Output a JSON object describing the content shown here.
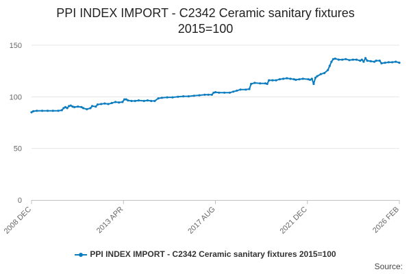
{
  "chart_data": {
    "type": "line",
    "title": "PPI INDEX IMPORT - C2342 Ceramic sanitary fixtures",
    "subtitle": "2015=100",
    "xlabel": "",
    "ylabel": "",
    "ylim": [
      0,
      150
    ],
    "yticks": [
      0,
      50,
      100,
      150
    ],
    "xticks": [
      "2008 DEC",
      "2013 APR",
      "2017 AUG",
      "2021 DEC",
      "2026 FEB"
    ],
    "xrange": [
      "2008-12",
      "2026-02"
    ],
    "grid": true,
    "legend_position": "bottom",
    "color": "#0b7cbf",
    "series": [
      {
        "name": "PPI INDEX IMPORT - C2342 Ceramic sanitary fixtures 2015=100",
        "points": [
          [
            "2008-12",
            85
          ],
          [
            "2009-01",
            86
          ],
          [
            "2009-03",
            86.5
          ],
          [
            "2009-06",
            86.5
          ],
          [
            "2009-09",
            86.5
          ],
          [
            "2009-12",
            86.5
          ],
          [
            "2010-03",
            86.5
          ],
          [
            "2010-05",
            87
          ],
          [
            "2010-06",
            89
          ],
          [
            "2010-07",
            90
          ],
          [
            "2010-08",
            89
          ],
          [
            "2010-09",
            91
          ],
          [
            "2010-10",
            91.5
          ],
          [
            "2010-11",
            90.5
          ],
          [
            "2010-12",
            90
          ],
          [
            "2011-02",
            90.5
          ],
          [
            "2011-04",
            90
          ],
          [
            "2011-05",
            89
          ],
          [
            "2011-07",
            88
          ],
          [
            "2011-09",
            89
          ],
          [
            "2011-10",
            91
          ],
          [
            "2011-12",
            90.5
          ],
          [
            "2012-01",
            92.5
          ],
          [
            "2012-03",
            93
          ],
          [
            "2012-05",
            93.5
          ],
          [
            "2012-07",
            93
          ],
          [
            "2012-09",
            94
          ],
          [
            "2012-11",
            95
          ],
          [
            "2013-01",
            94.5
          ],
          [
            "2013-03",
            95
          ],
          [
            "2013-04",
            97.5
          ],
          [
            "2013-05",
            97.5
          ],
          [
            "2013-06",
            96.5
          ],
          [
            "2013-08",
            96
          ],
          [
            "2013-10",
            96
          ],
          [
            "2013-12",
            96.5
          ],
          [
            "2014-03",
            96
          ],
          [
            "2014-05",
            96.5
          ],
          [
            "2014-07",
            96
          ],
          [
            "2014-09",
            96
          ],
          [
            "2014-11",
            98.5
          ],
          [
            "2015-01",
            99
          ],
          [
            "2015-04",
            99.5
          ],
          [
            "2015-07",
            99.5
          ],
          [
            "2015-10",
            100
          ],
          [
            "2016-01",
            100.5
          ],
          [
            "2016-04",
            100.5
          ],
          [
            "2016-07",
            101
          ],
          [
            "2016-10",
            101.5
          ],
          [
            "2017-01",
            102
          ],
          [
            "2017-03",
            102
          ],
          [
            "2017-05",
            102
          ],
          [
            "2017-06",
            104
          ],
          [
            "2017-07",
            104.5
          ],
          [
            "2017-09",
            104
          ],
          [
            "2017-12",
            104
          ],
          [
            "2018-03",
            104
          ],
          [
            "2018-05",
            105
          ],
          [
            "2018-07",
            106
          ],
          [
            "2018-09",
            107
          ],
          [
            "2018-12",
            107
          ],
          [
            "2019-02",
            107.5
          ],
          [
            "2019-03",
            112.5
          ],
          [
            "2019-05",
            113.5
          ],
          [
            "2019-08",
            113
          ],
          [
            "2019-11",
            113
          ],
          [
            "2019-12",
            112.5
          ],
          [
            "2020-01",
            116
          ],
          [
            "2020-03",
            116
          ],
          [
            "2020-05",
            116
          ],
          [
            "2020-07",
            117
          ],
          [
            "2020-09",
            117.5
          ],
          [
            "2020-11",
            118
          ],
          [
            "2021-01",
            117.5
          ],
          [
            "2021-03",
            117
          ],
          [
            "2021-04",
            116.5
          ],
          [
            "2021-06",
            117
          ],
          [
            "2021-08",
            117.5
          ],
          [
            "2021-11",
            117
          ],
          [
            "2021-12",
            116.5
          ],
          [
            "2022-01",
            117.5
          ],
          [
            "2022-02",
            112.5
          ],
          [
            "2022-03",
            118.5
          ],
          [
            "2022-04",
            120
          ],
          [
            "2022-06",
            122
          ],
          [
            "2022-08",
            123
          ],
          [
            "2022-10",
            126
          ],
          [
            "2022-11",
            130
          ],
          [
            "2022-12",
            134
          ],
          [
            "2023-01",
            136.5
          ],
          [
            "2023-02",
            137
          ],
          [
            "2023-04",
            136
          ],
          [
            "2023-06",
            136
          ],
          [
            "2023-08",
            136.5
          ],
          [
            "2023-10",
            135.5
          ],
          [
            "2023-12",
            136
          ],
          [
            "2024-02",
            136
          ],
          [
            "2024-04",
            135
          ],
          [
            "2024-05",
            136
          ],
          [
            "2024-06",
            134
          ],
          [
            "2024-07",
            137.5
          ],
          [
            "2024-08",
            135
          ],
          [
            "2024-10",
            134.5
          ],
          [
            "2024-12",
            134
          ],
          [
            "2025-01",
            135
          ],
          [
            "2025-03",
            135
          ],
          [
            "2025-04",
            132.5
          ],
          [
            "2025-06",
            133
          ],
          [
            "2025-08",
            133.5
          ],
          [
            "2025-10",
            133.5
          ],
          [
            "2025-12",
            134
          ],
          [
            "2026-02",
            133
          ]
        ]
      }
    ]
  },
  "legend": {
    "label": "PPI INDEX IMPORT - C2342 Ceramic sanitary fixtures 2015=100"
  },
  "source": {
    "label": "Source:"
  }
}
